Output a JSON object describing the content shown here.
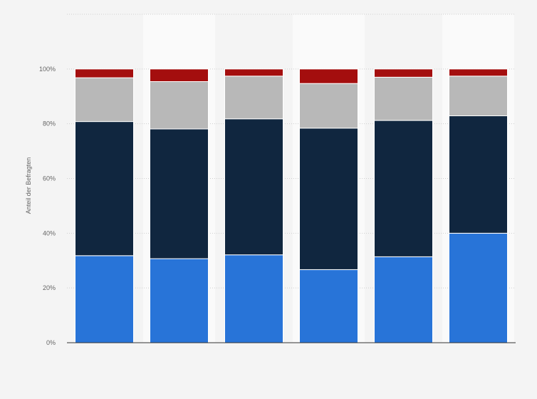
{
  "chart_data": {
    "type": "bar",
    "stacked": true,
    "percent": true,
    "categories": [
      "",
      "",
      "",
      "",
      "",
      ""
    ],
    "series": [
      {
        "color": "#2874d8",
        "values": [
          31.8,
          30.7,
          32.1,
          26.7,
          31.4,
          40.0
        ]
      },
      {
        "color": "#10263f",
        "values": [
          49.0,
          47.4,
          49.7,
          51.7,
          49.8,
          42.9
        ]
      },
      {
        "color": "#b8b8b8",
        "values": [
          16.0,
          17.3,
          15.6,
          16.3,
          15.8,
          14.5
        ]
      },
      {
        "color": "#a40e0e",
        "values": [
          3.2,
          4.6,
          2.6,
          5.3,
          3.0,
          2.6
        ]
      }
    ],
    "ylabel": "Anteil der Befragten",
    "xlabel": "",
    "ylim": [
      0,
      120
    ],
    "yticks": [
      "0%",
      "20%",
      "40%",
      "60%",
      "80%",
      "100%"
    ],
    "grid": true,
    "legend": "none"
  }
}
